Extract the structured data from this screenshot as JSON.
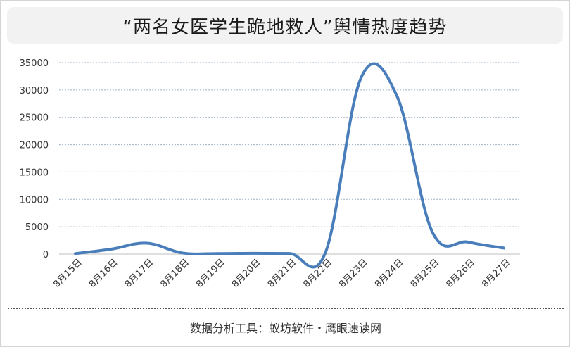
{
  "footer": {
    "source": "数据分析工具：蚁坊软件・鹰眼速读网"
  },
  "chart_data": {
    "type": "line",
    "title": "“两名女医学生跪地救人”舆情热度趋势",
    "x": [
      "8月15日",
      "8月16日",
      "8月17日",
      "8月18日",
      "8月19日",
      "8月20日",
      "8月21日",
      "8月22日",
      "8月23日",
      "8月24日",
      "8月25日",
      "8月26日",
      "8月27日"
    ],
    "y": [
      80,
      900,
      2000,
      200,
      100,
      150,
      120,
      200,
      32200,
      29000,
      4000,
      2200,
      1100
    ],
    "ylim": [
      0,
      35000
    ],
    "yticks": [
      0,
      5000,
      10000,
      15000,
      20000,
      25000,
      30000,
      35000
    ],
    "xlabel": "",
    "ylabel": "",
    "grid": true,
    "colors": {
      "line": "#4a7ebb",
      "grid": "#9fb3c8",
      "axis": "#bfbfbf",
      "tick_text": "#333333"
    }
  }
}
